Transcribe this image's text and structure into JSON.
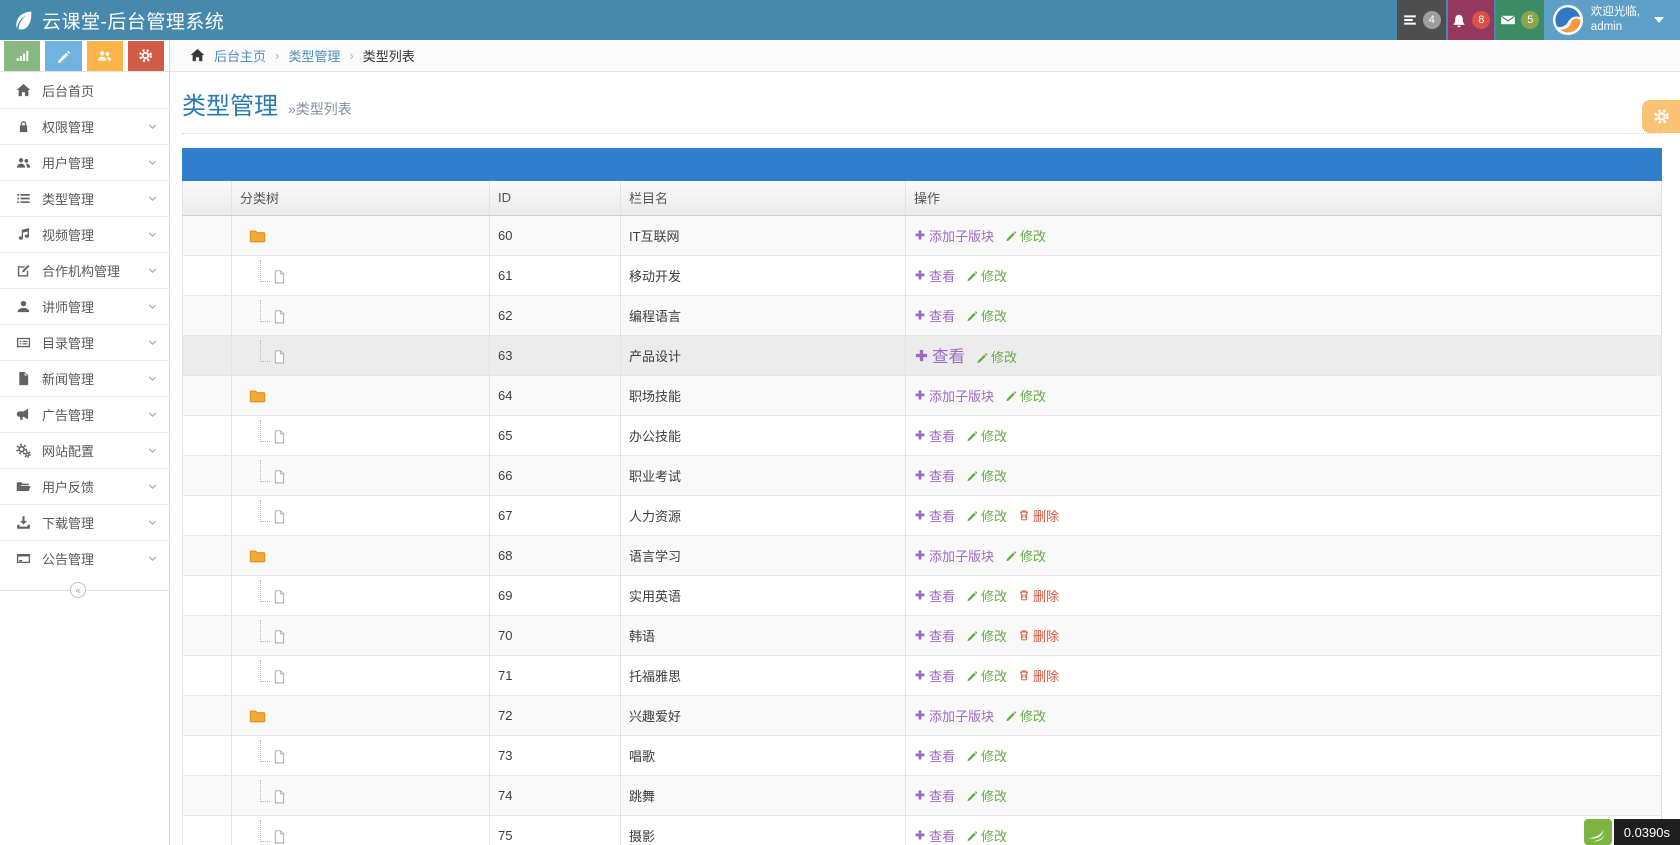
{
  "navbar": {
    "title": "云课堂-后台管理系统",
    "menus": [
      {
        "name": "tasks",
        "icon": "tasks-icon",
        "count": "4"
      },
      {
        "name": "alerts",
        "icon": "bell-icon",
        "count": "8"
      },
      {
        "name": "messages",
        "icon": "envelope-icon",
        "count": "5"
      }
    ],
    "user": {
      "greeting": "欢迎光临,",
      "username": "admin"
    }
  },
  "shortcuts": [
    {
      "name": "stats",
      "icon": "signal-icon"
    },
    {
      "name": "edit",
      "icon": "pencil-icon"
    },
    {
      "name": "users",
      "icon": "group-icon"
    },
    {
      "name": "settings",
      "icon": "gear-icon"
    }
  ],
  "breadcrumb": [
    "后台主页",
    "类型管理",
    "类型列表"
  ],
  "sidebar": [
    {
      "icon": "home",
      "label": "后台首页",
      "arrow": false
    },
    {
      "icon": "lock",
      "label": "权限管理",
      "arrow": true
    },
    {
      "icon": "users",
      "label": "用户管理",
      "arrow": true
    },
    {
      "icon": "list",
      "label": "类型管理",
      "arrow": true
    },
    {
      "icon": "music",
      "label": "视频管理",
      "arrow": true
    },
    {
      "icon": "edit",
      "label": "合作机构管理",
      "arrow": true
    },
    {
      "icon": "user",
      "label": "讲师管理",
      "arrow": true
    },
    {
      "icon": "listalt",
      "label": "目录管理",
      "arrow": true
    },
    {
      "icon": "file",
      "label": "新闻管理",
      "arrow": true
    },
    {
      "icon": "bullhorn",
      "label": "广告管理",
      "arrow": true
    },
    {
      "icon": "gears",
      "label": "网站配置",
      "arrow": true
    },
    {
      "icon": "folderopen",
      "label": "用户反馈",
      "arrow": true
    },
    {
      "icon": "download",
      "label": "下载管理",
      "arrow": true
    },
    {
      "icon": "newspaper",
      "label": "公告管理",
      "arrow": true
    }
  ],
  "page": {
    "title": "类型管理",
    "subtitle": "»类型列表"
  },
  "table": {
    "headers": [
      "",
      "分类树",
      "ID",
      "栏目名",
      "操作"
    ],
    "actions": {
      "add": "添加子版块",
      "view": "查看",
      "edit": "修改",
      "del": "删除"
    },
    "rows": [
      {
        "id": "60",
        "name": "IT互联网",
        "type": "parent",
        "actions": [
          "add",
          "edit"
        ],
        "hover": false
      },
      {
        "id": "61",
        "name": "移动开发",
        "type": "child",
        "actions": [
          "view",
          "edit"
        ],
        "hover": false
      },
      {
        "id": "62",
        "name": "编程语言",
        "type": "child",
        "actions": [
          "view",
          "edit"
        ],
        "hover": false
      },
      {
        "id": "63",
        "name": "产品设计",
        "type": "child",
        "actions": [
          "view",
          "edit"
        ],
        "hover": true
      },
      {
        "id": "64",
        "name": "职场技能",
        "type": "parent",
        "actions": [
          "add",
          "edit"
        ],
        "hover": false
      },
      {
        "id": "65",
        "name": "办公技能",
        "type": "child",
        "actions": [
          "view",
          "edit"
        ],
        "hover": false
      },
      {
        "id": "66",
        "name": "职业考试",
        "type": "child",
        "actions": [
          "view",
          "edit"
        ],
        "hover": false
      },
      {
        "id": "67",
        "name": "人力资源",
        "type": "child",
        "actions": [
          "view",
          "edit",
          "del"
        ],
        "hover": false
      },
      {
        "id": "68",
        "name": "语言学习",
        "type": "parent",
        "actions": [
          "add",
          "edit"
        ],
        "hover": false
      },
      {
        "id": "69",
        "name": "实用英语",
        "type": "child",
        "actions": [
          "view",
          "edit",
          "del"
        ],
        "hover": false
      },
      {
        "id": "70",
        "name": "韩语",
        "type": "child",
        "actions": [
          "view",
          "edit",
          "del"
        ],
        "hover": false
      },
      {
        "id": "71",
        "name": "托福雅思",
        "type": "child",
        "actions": [
          "view",
          "edit",
          "del"
        ],
        "hover": false
      },
      {
        "id": "72",
        "name": "兴趣爱好",
        "type": "parent",
        "actions": [
          "add",
          "edit"
        ],
        "hover": false
      },
      {
        "id": "73",
        "name": "唱歌",
        "type": "child",
        "actions": [
          "view",
          "edit"
        ],
        "hover": false
      },
      {
        "id": "74",
        "name": "跳舞",
        "type": "child",
        "actions": [
          "view",
          "edit"
        ],
        "hover": false
      },
      {
        "id": "75",
        "name": "摄影",
        "type": "child",
        "actions": [
          "view",
          "edit"
        ],
        "hover": false
      }
    ]
  },
  "footer": {
    "exec_time": "0.0390s"
  },
  "colors": {
    "navbar": "#4788ad",
    "user_block": "#5d9fc7",
    "menu_gray": "#4e4e4e",
    "menu_maroon": "#94385f",
    "menu_green": "#3d8a66",
    "table_band": "#307ecc",
    "heading_blue": "#2679b5",
    "link_purple": "#a069c3",
    "link_green": "#69aa46",
    "link_red": "#dd5a43",
    "btn_green": "#87b87f",
    "btn_blue": "#6fb3e0",
    "btn_orange": "#ffb44a",
    "btn_red": "#d15b47",
    "settings_orange": "#fac272",
    "folder_orange": "#f5a833",
    "trace_green": "#7cb440"
  }
}
